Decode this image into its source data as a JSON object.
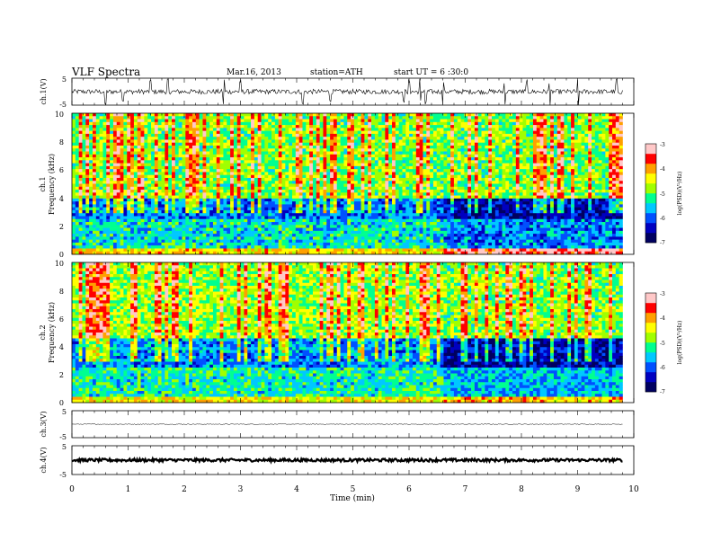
{
  "header": {
    "title": "VLF Spectra",
    "date": "Mar.16, 2013",
    "station": "station=ATH",
    "start": "start UT = 6 :30:0"
  },
  "colors": {
    "background": "#ffffff",
    "axis": "#000000",
    "colormap": [
      "#000060",
      "#0000c0",
      "#0050ff",
      "#00c8ff",
      "#00ff90",
      "#a0ff00",
      "#ffff00",
      "#ffa000",
      "#ff0000",
      "#ffc8c8"
    ]
  },
  "chart_data": [
    {
      "type": "line",
      "id": "ch1",
      "ylabel": "ch.1(V)",
      "ytick_labels": [
        "5",
        "-5"
      ],
      "ylim": [
        -5,
        5
      ],
      "xlim": [
        0,
        9.8
      ],
      "description_baseline": 0,
      "noise_amplitude": 0.9,
      "spikes": [
        0.6,
        0.9,
        1.4,
        1.7,
        2.7,
        3.0,
        4.1,
        4.6,
        5.9,
        6.0,
        6.2,
        6.3,
        6.6,
        7.7,
        8.1,
        8.5,
        9.0,
        9.7
      ]
    },
    {
      "type": "heatmap",
      "id": "ch1-spectrogram",
      "ylabel": "ch.1\nFrequency (kHz)",
      "ylabel_top": "ch.1",
      "ylabel_bottom": "Frequency (kHz)",
      "ytick_labels": [
        "10",
        "8",
        "6",
        "4",
        "2",
        "0"
      ],
      "ylim": [
        0,
        10
      ],
      "xlim": [
        0,
        9.8
      ],
      "z_label": "log(PSD)(V²/Hz)",
      "z_ticks": [
        "-3",
        "-4",
        "-5",
        "-6",
        "-7"
      ],
      "zlim": [
        -7,
        -3
      ],
      "bands": [
        {
          "from_kHz": 4,
          "to_kHz": 10,
          "logPSD_before": -4.9,
          "logPSD_after": -4.9
        },
        {
          "from_kHz": 2.5,
          "to_kHz": 4,
          "logPSD_before": -5.9,
          "logPSD_after": -6.5
        },
        {
          "from_kHz": 0.5,
          "to_kHz": 2.5,
          "logPSD_before": -5.4,
          "logPSD_after": -5.8
        },
        {
          "from_kHz": 0,
          "to_kHz": 0.5,
          "logPSD_before": -4.3,
          "logPSD_after": -3.4
        }
      ],
      "transition_min": 6.6
    },
    {
      "type": "heatmap",
      "id": "ch2-spectrogram",
      "ylabel": "ch.2\nFrequency (kHz)",
      "ylabel_top": "ch.2",
      "ylabel_bottom": "Frequency (kHz)",
      "ytick_labels": [
        "10",
        "8",
        "6",
        "4",
        "2",
        "0"
      ],
      "ylim": [
        0,
        10
      ],
      "xlim": [
        0,
        9.8
      ],
      "z_label": "log(PSD)(V²/Hz)",
      "z_ticks": [
        "-3",
        "-4",
        "-5",
        "-6",
        "-7"
      ],
      "zlim": [
        -7,
        -3
      ],
      "bands": [
        {
          "from_kHz": 4.5,
          "to_kHz": 10,
          "logPSD_before": -4.8,
          "logPSD_after": -4.9
        },
        {
          "from_kHz": 2.5,
          "to_kHz": 4.5,
          "logPSD_before": -5.8,
          "logPSD_after": -6.5
        },
        {
          "from_kHz": 0.5,
          "to_kHz": 2.5,
          "logPSD_before": -5.3,
          "logPSD_after": -5.6
        },
        {
          "from_kHz": 0,
          "to_kHz": 0.5,
          "logPSD_before": -4.4,
          "logPSD_after": -4.2
        }
      ],
      "transition_min": 6.6
    },
    {
      "type": "line",
      "id": "ch3",
      "ylabel": "ch.3(V)",
      "ytick_labels": [
        "5",
        "-5"
      ],
      "ylim": [
        -5,
        5
      ],
      "xlim": [
        0,
        9.8
      ],
      "description_baseline": 0,
      "noise_amplitude": 0.15,
      "spikes": []
    },
    {
      "type": "line",
      "id": "ch4",
      "ylabel": "ch.4(V)",
      "ytick_labels": [
        "5",
        "-5"
      ],
      "ylim": [
        -5,
        5
      ],
      "xlim": [
        0,
        9.8
      ],
      "description_baseline": 0,
      "noise_amplitude": 0.5,
      "spikes": []
    }
  ],
  "xaxis": {
    "label": "Time (min)",
    "xlim": [
      0,
      10
    ],
    "tick_labels": [
      "0",
      "1",
      "2",
      "3",
      "4",
      "5",
      "6",
      "7",
      "8",
      "9",
      "10"
    ]
  }
}
